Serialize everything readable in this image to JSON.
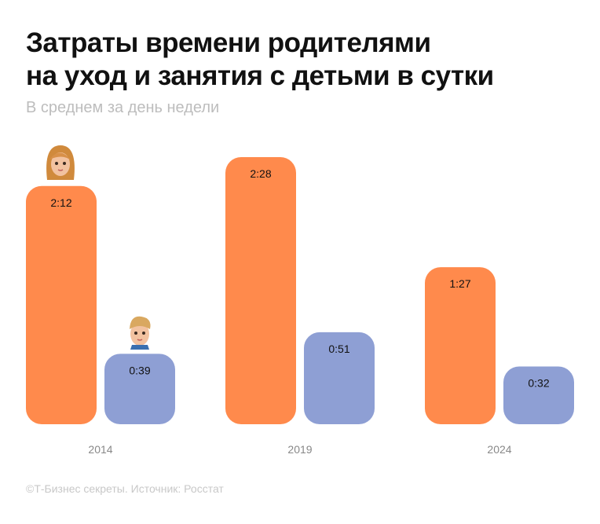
{
  "title_line1": "Затраты времени родителями",
  "title_line2": "на уход и занятия с детьми в сутки",
  "subtitle": "В среднем за день недели",
  "footer": "©Т-Бизнес секреты. Источник: Росстат",
  "chart_data": {
    "type": "bar",
    "categories": [
      "2014",
      "2019",
      "2024"
    ],
    "unit": "h:mm",
    "series": [
      {
        "icon": "woman-avatar-icon",
        "color": "#FF8A4C",
        "values_minutes": [
          132,
          148,
          87
        ],
        "labels": [
          "2:12",
          "2:28",
          "1:27"
        ]
      },
      {
        "icon": "man-avatar-icon",
        "color": "#8E9FD4",
        "values_minutes": [
          39,
          51,
          32
        ],
        "labels": [
          "0:39",
          "0:51",
          "0:32"
        ]
      }
    ],
    "ylim": [
      0,
      148
    ],
    "grid": false,
    "legend": "avatars above 2014 bars"
  }
}
